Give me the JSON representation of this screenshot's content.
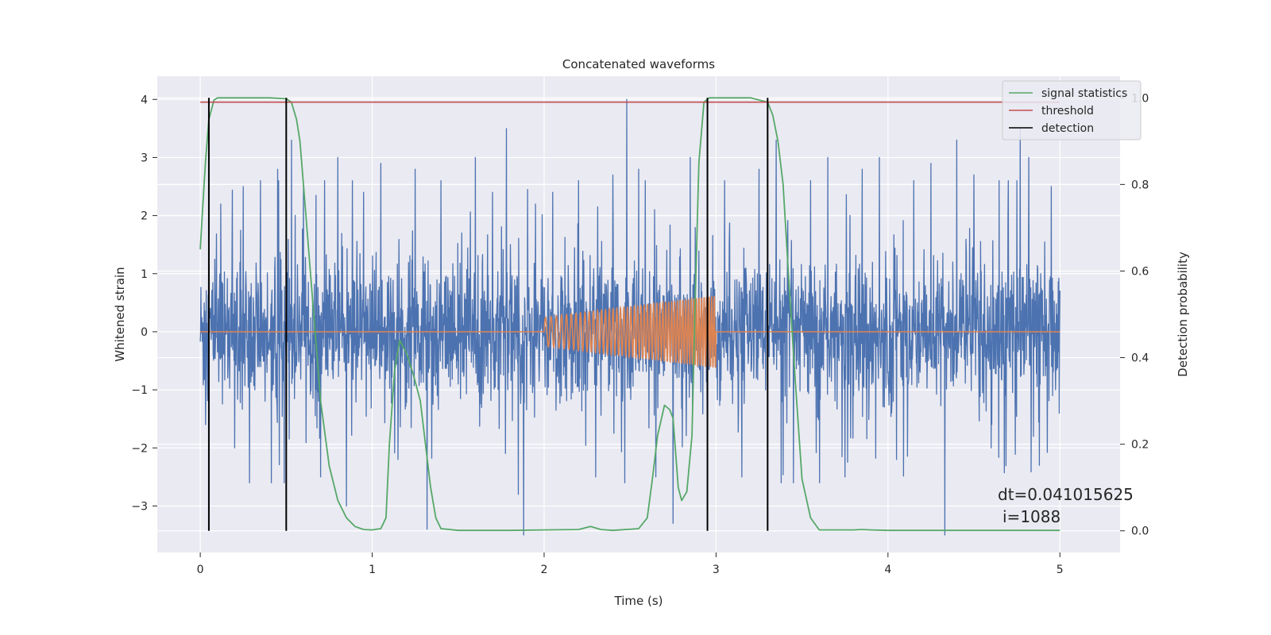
{
  "chart_data": {
    "type": "line",
    "title": "Concatenated waveforms",
    "xlabel": "Time (s)",
    "ylabel": "Whitened strain",
    "y2label": "Detection probability",
    "xlim": [
      -0.25,
      5.35
    ],
    "ylim": [
      -3.8,
      4.4
    ],
    "y2lim": [
      -0.05,
      1.05
    ],
    "x_ticks": [
      0,
      1,
      2,
      3,
      4,
      5
    ],
    "y_ticks": [
      -3,
      -2,
      -1,
      0,
      1,
      2,
      3,
      4
    ],
    "y2_ticks": [
      0.0,
      0.2,
      0.4,
      0.6,
      0.8,
      1.0
    ],
    "x_tick_labels": [
      "0",
      "1",
      "2",
      "3",
      "4",
      "5"
    ],
    "y_tick_labels": [
      "−3",
      "−2",
      "−1",
      "0",
      "1",
      "2",
      "3",
      "4"
    ],
    "y2_tick_labels": [
      "0.0",
      "0.2",
      "0.4",
      "0.6",
      "0.8",
      "1.0"
    ],
    "grid": true,
    "legend_position": "top-right",
    "colors": {
      "noise": "#4c72b0",
      "injection": "#dd8452",
      "signal_statistics": "#55a868",
      "threshold": "#c44e52",
      "detection": "#000000",
      "background": "#eaeaf2"
    },
    "series": [
      {
        "name": "",
        "axis": "left",
        "description_free": true,
        "x_range": [
          0,
          5
        ],
        "envelope_typical": [
          -1.0,
          1.0
        ],
        "spikes": [
          [
            0.03,
            -1.6
          ],
          [
            0.05,
            1.9
          ],
          [
            0.12,
            2.2
          ],
          [
            0.2,
            -2.0
          ],
          [
            0.25,
            2.5
          ],
          [
            0.35,
            2.6
          ],
          [
            0.45,
            2.8
          ],
          [
            0.5,
            -2.4
          ],
          [
            0.53,
            3.3
          ],
          [
            0.6,
            2.5
          ],
          [
            0.7,
            -2.5
          ],
          [
            0.8,
            3.0
          ],
          [
            0.85,
            -3.0
          ],
          [
            0.95,
            2.4
          ],
          [
            1.05,
            2.9
          ],
          [
            1.15,
            -2.2
          ],
          [
            1.25,
            2.8
          ],
          [
            1.32,
            -3.4
          ],
          [
            1.4,
            2.6
          ],
          [
            1.5,
            -0.9
          ],
          [
            1.6,
            3.0
          ],
          [
            1.7,
            2.4
          ],
          [
            1.78,
            3.5
          ],
          [
            1.85,
            -2.8
          ],
          [
            1.88,
            -3.5
          ],
          [
            1.95,
            2.2
          ],
          [
            2.05,
            2.4
          ],
          [
            2.2,
            2.6
          ],
          [
            2.3,
            -2.5
          ],
          [
            2.4,
            2.7
          ],
          [
            2.48,
            4.0
          ],
          [
            2.55,
            2.8
          ],
          [
            2.65,
            -2.5
          ],
          [
            2.75,
            -3.3
          ],
          [
            2.85,
            3.0
          ],
          [
            2.95,
            3.3
          ],
          [
            3.05,
            2.6
          ],
          [
            3.15,
            -2.5
          ],
          [
            3.25,
            2.8
          ],
          [
            3.35,
            3.3
          ],
          [
            3.45,
            -2.6
          ],
          [
            3.55,
            2.6
          ],
          [
            3.65,
            3.0
          ],
          [
            3.75,
            -2.5
          ],
          [
            3.85,
            2.8
          ],
          [
            3.95,
            3.0
          ],
          [
            4.05,
            -2.2
          ],
          [
            4.15,
            2.6
          ],
          [
            4.25,
            2.9
          ],
          [
            4.33,
            -3.5
          ],
          [
            4.4,
            3.3
          ],
          [
            4.5,
            2.7
          ],
          [
            4.6,
            -2.0
          ],
          [
            4.7,
            2.6
          ],
          [
            4.77,
            3.5
          ],
          [
            4.82,
            3.0
          ],
          [
            4.88,
            -2.3
          ],
          [
            4.95,
            2.5
          ]
        ]
      },
      {
        "name": "",
        "axis": "left",
        "chirp_start": 2.0,
        "chirp_end": 3.0,
        "amplitude_start": 0.25,
        "amplitude_end": 0.62,
        "flat_value": 0
      },
      {
        "name": "signal statistics",
        "axis": "right",
        "x": [
          0,
          0.01,
          0.03,
          0.05,
          0.08,
          0.1,
          0.2,
          0.4,
          0.5,
          0.53,
          0.56,
          0.58,
          0.6,
          0.65,
          0.7,
          0.75,
          0.8,
          0.85,
          0.9,
          0.95,
          1.0,
          1.05,
          1.08,
          1.1,
          1.13,
          1.16,
          1.2,
          1.24,
          1.28,
          1.31,
          1.34,
          1.37,
          1.4,
          1.5,
          1.8,
          2.0,
          2.2,
          2.27,
          2.33,
          2.4,
          2.55,
          2.6,
          2.63,
          2.66,
          2.7,
          2.73,
          2.75,
          2.78,
          2.8,
          2.83,
          2.86,
          2.88,
          2.9,
          2.93,
          2.96,
          3.0,
          3.1,
          3.2,
          3.3,
          3.33,
          3.36,
          3.39,
          3.42,
          3.46,
          3.5,
          3.55,
          3.6,
          3.8,
          3.85,
          3.9,
          4.0,
          4.5,
          5.0
        ],
        "values": [
          0.65,
          0.72,
          0.85,
          0.95,
          0.995,
          1.0,
          1.0,
          1.0,
          0.998,
          0.99,
          0.95,
          0.9,
          0.8,
          0.55,
          0.3,
          0.15,
          0.07,
          0.03,
          0.01,
          0.003,
          0.002,
          0.005,
          0.03,
          0.2,
          0.37,
          0.44,
          0.41,
          0.36,
          0.3,
          0.2,
          0.1,
          0.03,
          0.005,
          0.001,
          0.001,
          0.002,
          0.003,
          0.01,
          0.003,
          0.001,
          0.005,
          0.03,
          0.12,
          0.22,
          0.29,
          0.28,
          0.26,
          0.1,
          0.07,
          0.09,
          0.22,
          0.55,
          0.85,
          0.99,
          1.0,
          1.0,
          1.0,
          1.0,
          0.99,
          0.96,
          0.9,
          0.8,
          0.6,
          0.35,
          0.12,
          0.03,
          0.002,
          0.002,
          0.003,
          0.002,
          0.001,
          0.001,
          0.001
        ]
      },
      {
        "name": "threshold",
        "axis": "right",
        "x": [
          0,
          5
        ],
        "values": [
          0.99,
          0.99
        ]
      },
      {
        "name": "detection",
        "axis": "right",
        "x": [
          0.05,
          0.5,
          2.95,
          3.3
        ],
        "values": [
          [
            0,
            1
          ],
          [
            0,
            1
          ],
          [
            0,
            1
          ],
          [
            0,
            1
          ]
        ]
      }
    ],
    "annotation": {
      "line1": "dt=0.041015625",
      "line2": "i=1088"
    }
  }
}
